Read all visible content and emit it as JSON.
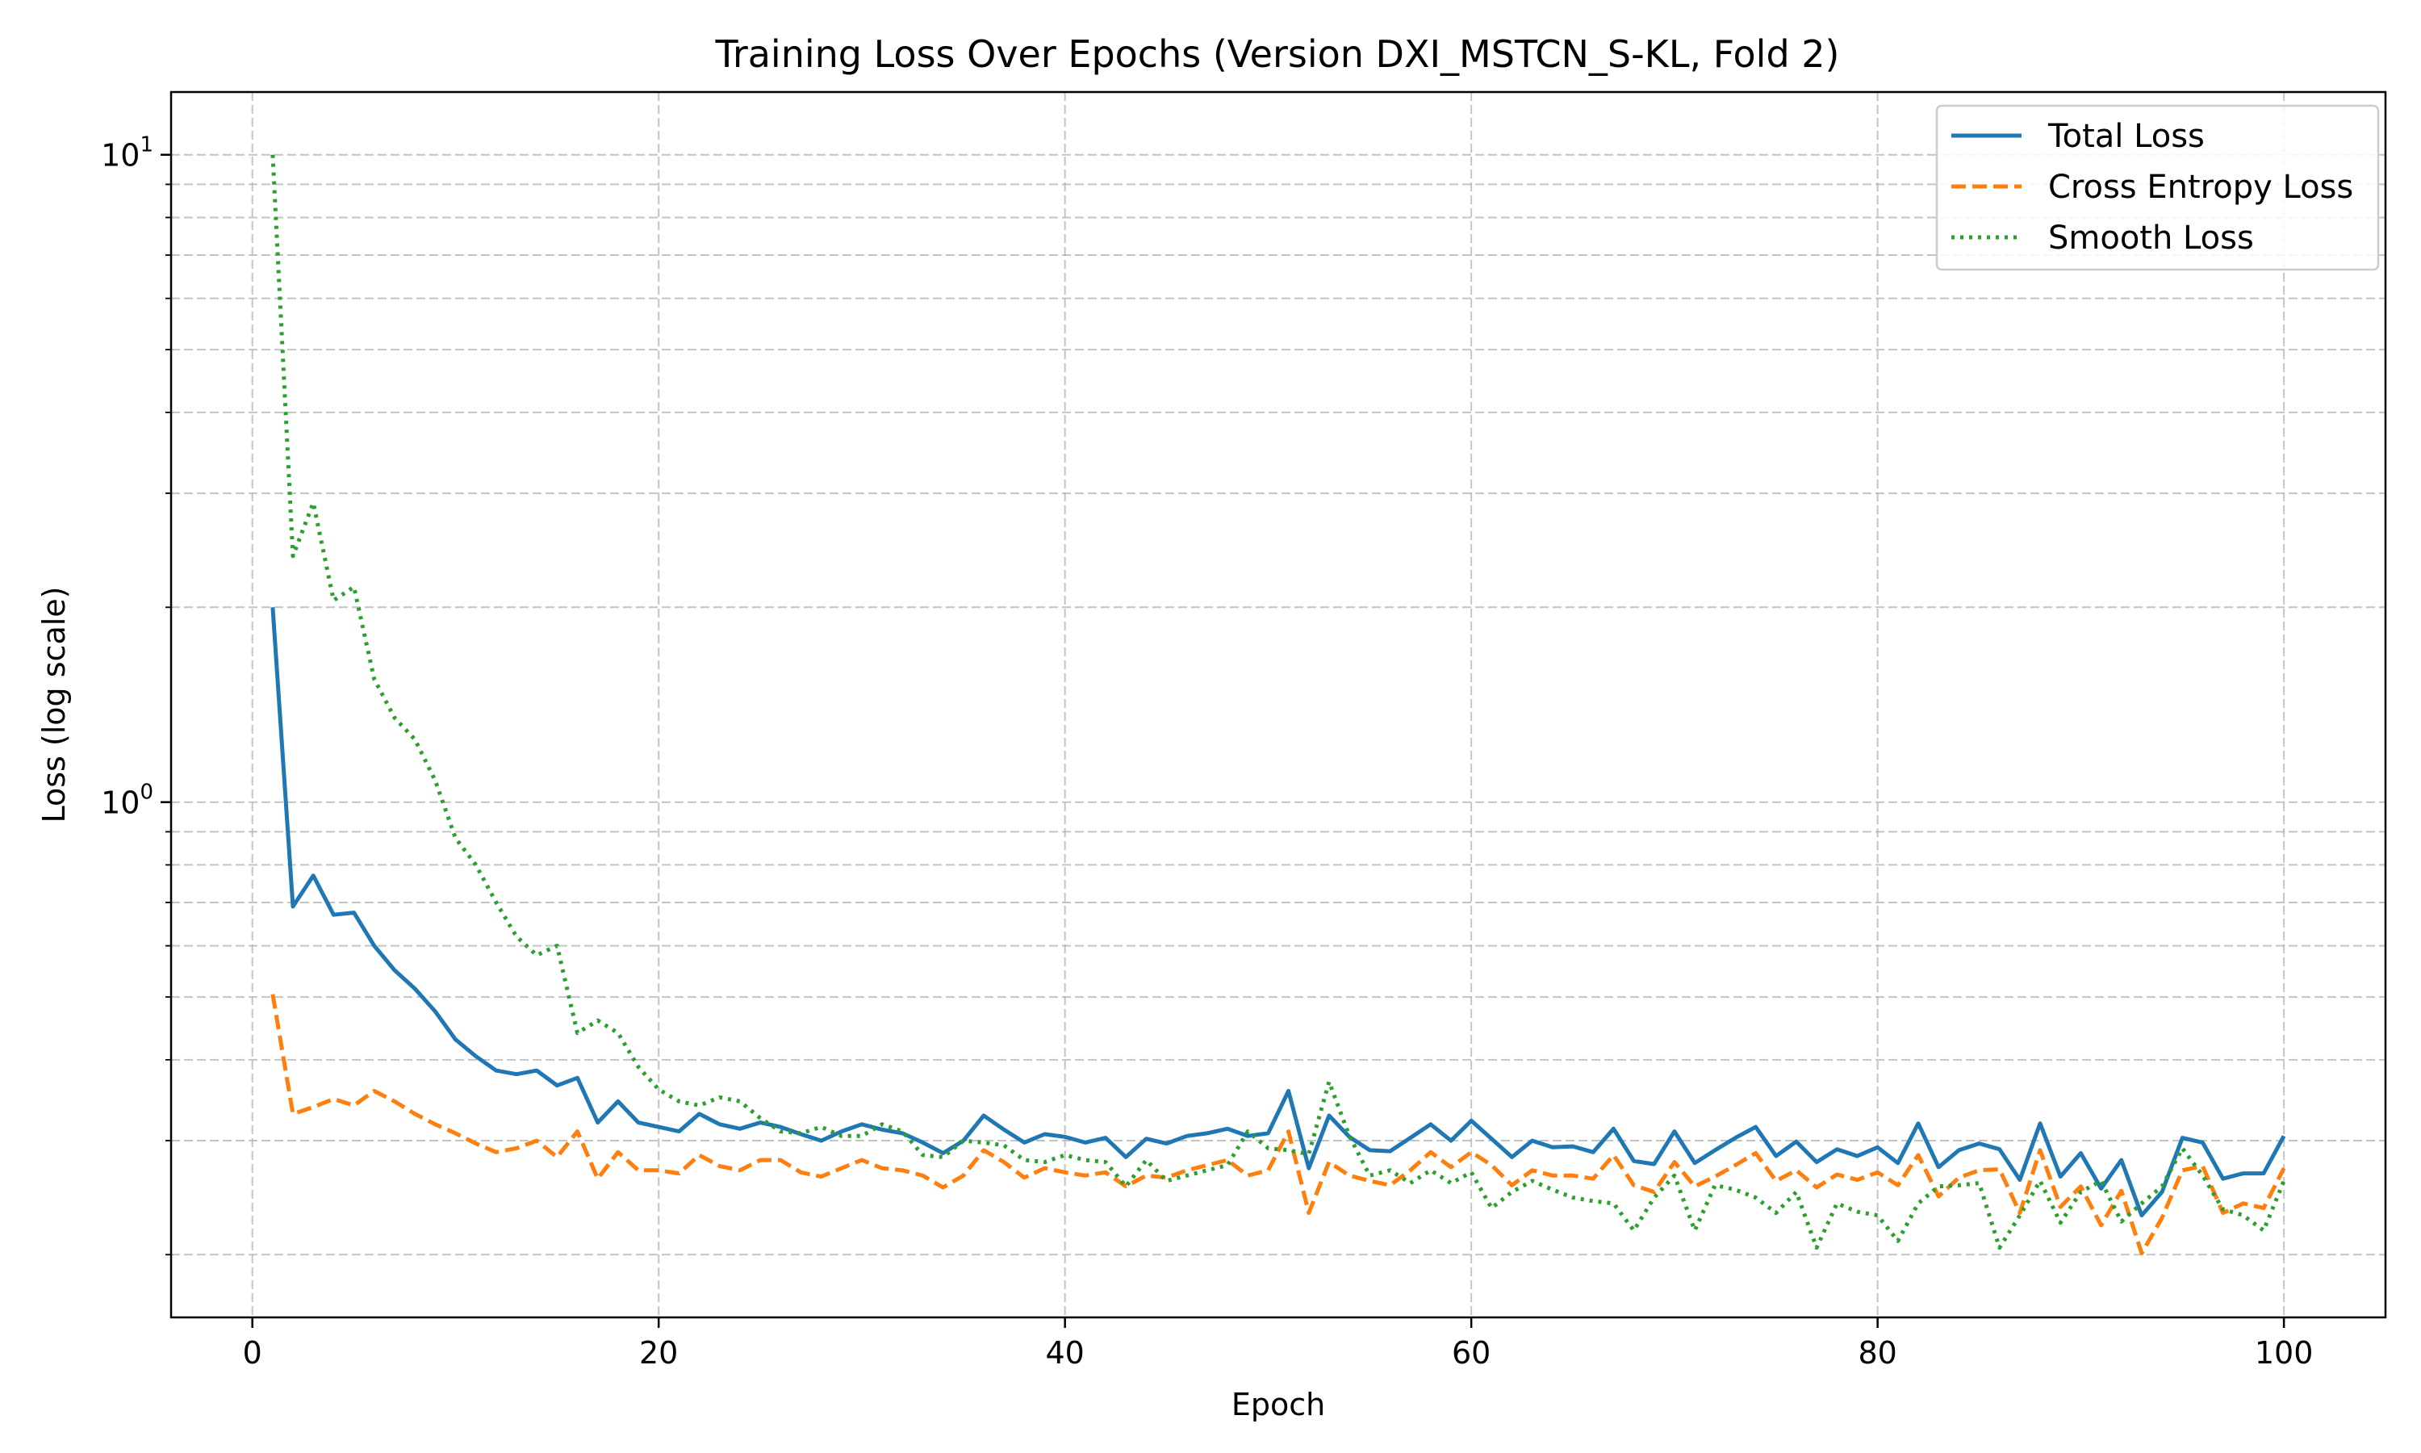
{
  "chart_data": {
    "type": "line",
    "title": "Training Loss Over Epochs (Version DXI_MSTCN_S-KL, Fold 2)",
    "xlabel": "Epoch",
    "ylabel": "Loss (log scale)",
    "yscale": "log",
    "xlim": [
      -4,
      105
    ],
    "ylim": [
      0.16,
      12.5
    ],
    "x_ticks": [
      0,
      20,
      40,
      60,
      80,
      100
    ],
    "x_tick_labels": [
      "0",
      "20",
      "40",
      "60",
      "80",
      "100"
    ],
    "y_ticks": [
      {
        "value": 10,
        "base": "10",
        "exp": "1"
      },
      {
        "value": 1,
        "base": "10",
        "exp": "0"
      }
    ],
    "grid": true,
    "legend_position": "top-right",
    "x": [
      1,
      2,
      3,
      4,
      5,
      6,
      7,
      8,
      9,
      10,
      11,
      12,
      13,
      14,
      15,
      16,
      17,
      18,
      19,
      20,
      21,
      22,
      23,
      24,
      25,
      26,
      27,
      28,
      29,
      30,
      31,
      32,
      33,
      34,
      35,
      36,
      37,
      38,
      39,
      40,
      41,
      42,
      43,
      44,
      45,
      46,
      47,
      48,
      49,
      50,
      51,
      52,
      53,
      54,
      55,
      56,
      57,
      58,
      59,
      60,
      61,
      62,
      63,
      64,
      65,
      66,
      67,
      68,
      69,
      70,
      71,
      72,
      73,
      74,
      75,
      76,
      77,
      78,
      79,
      80,
      81,
      82,
      83,
      84,
      85,
      86,
      87,
      88,
      89,
      90,
      91,
      92,
      93,
      94,
      95,
      96,
      97,
      98,
      99,
      100
    ],
    "series": [
      {
        "name": "Total Loss",
        "color": "#1f77b4",
        "dash": "solid",
        "values": [
          2.0,
          0.69,
          0.77,
          0.67,
          0.675,
          0.6,
          0.55,
          0.515,
          0.475,
          0.43,
          0.405,
          0.385,
          0.38,
          0.385,
          0.365,
          0.375,
          0.32,
          0.345,
          0.32,
          0.315,
          0.31,
          0.33,
          0.318,
          0.313,
          0.32,
          0.315,
          0.307,
          0.3,
          0.31,
          0.318,
          0.312,
          0.308,
          0.298,
          0.287,
          0.3,
          0.328,
          0.312,
          0.298,
          0.307,
          0.304,
          0.298,
          0.303,
          0.283,
          0.302,
          0.297,
          0.305,
          0.308,
          0.313,
          0.305,
          0.308,
          0.358,
          0.272,
          0.328,
          0.304,
          0.29,
          0.289,
          0.303,
          0.318,
          0.3,
          0.322,
          0.302,
          0.283,
          0.3,
          0.293,
          0.294,
          0.288,
          0.313,
          0.279,
          0.276,
          0.31,
          0.277,
          0.29,
          0.303,
          0.315,
          0.284,
          0.299,
          0.278,
          0.291,
          0.284,
          0.293,
          0.277,
          0.319,
          0.273,
          0.29,
          0.297,
          0.291,
          0.261,
          0.319,
          0.264,
          0.287,
          0.253,
          0.28,
          0.23,
          0.25,
          0.303,
          0.298,
          0.262,
          0.267,
          0.267,
          0.305
        ]
      },
      {
        "name": "Cross Entropy Loss",
        "color": "#ff7f0e",
        "dash": "dashed",
        "values": [
          0.505,
          0.33,
          0.338,
          0.348,
          0.34,
          0.358,
          0.345,
          0.33,
          0.318,
          0.308,
          0.297,
          0.288,
          0.292,
          0.3,
          0.283,
          0.31,
          0.262,
          0.288,
          0.27,
          0.27,
          0.267,
          0.285,
          0.274,
          0.27,
          0.28,
          0.28,
          0.268,
          0.264,
          0.272,
          0.28,
          0.272,
          0.27,
          0.265,
          0.254,
          0.265,
          0.29,
          0.278,
          0.263,
          0.272,
          0.268,
          0.265,
          0.268,
          0.255,
          0.265,
          0.263,
          0.27,
          0.275,
          0.28,
          0.265,
          0.27,
          0.31,
          0.232,
          0.278,
          0.265,
          0.26,
          0.256,
          0.27,
          0.288,
          0.273,
          0.288,
          0.275,
          0.256,
          0.27,
          0.265,
          0.265,
          0.262,
          0.285,
          0.256,
          0.25,
          0.278,
          0.255,
          0.264,
          0.275,
          0.287,
          0.26,
          0.27,
          0.254,
          0.266,
          0.261,
          0.268,
          0.256,
          0.285,
          0.246,
          0.263,
          0.27,
          0.271,
          0.232,
          0.29,
          0.237,
          0.255,
          0.222,
          0.251,
          0.201,
          0.228,
          0.27,
          0.274,
          0.232,
          0.24,
          0.236,
          0.272
        ]
      },
      {
        "name": "Smooth Loss",
        "color": "#2ca02c",
        "dash": "dotted",
        "values": [
          10.0,
          2.4,
          2.9,
          2.05,
          2.15,
          1.55,
          1.35,
          1.25,
          1.08,
          0.88,
          0.8,
          0.7,
          0.62,
          0.58,
          0.6,
          0.44,
          0.46,
          0.44,
          0.39,
          0.36,
          0.345,
          0.34,
          0.35,
          0.345,
          0.325,
          0.31,
          0.308,
          0.315,
          0.305,
          0.305,
          0.318,
          0.31,
          0.285,
          0.283,
          0.3,
          0.298,
          0.295,
          0.28,
          0.278,
          0.285,
          0.28,
          0.278,
          0.255,
          0.28,
          0.26,
          0.265,
          0.27,
          0.275,
          0.31,
          0.292,
          0.29,
          0.286,
          0.37,
          0.305,
          0.265,
          0.27,
          0.258,
          0.27,
          0.258,
          0.268,
          0.236,
          0.25,
          0.26,
          0.252,
          0.245,
          0.242,
          0.24,
          0.218,
          0.245,
          0.265,
          0.218,
          0.256,
          0.252,
          0.245,
          0.232,
          0.25,
          0.205,
          0.24,
          0.233,
          0.23,
          0.21,
          0.24,
          0.255,
          0.256,
          0.258,
          0.205,
          0.23,
          0.26,
          0.224,
          0.25,
          0.26,
          0.225,
          0.24,
          0.255,
          0.292,
          0.265,
          0.235,
          0.23,
          0.218,
          0.26
        ]
      }
    ]
  }
}
